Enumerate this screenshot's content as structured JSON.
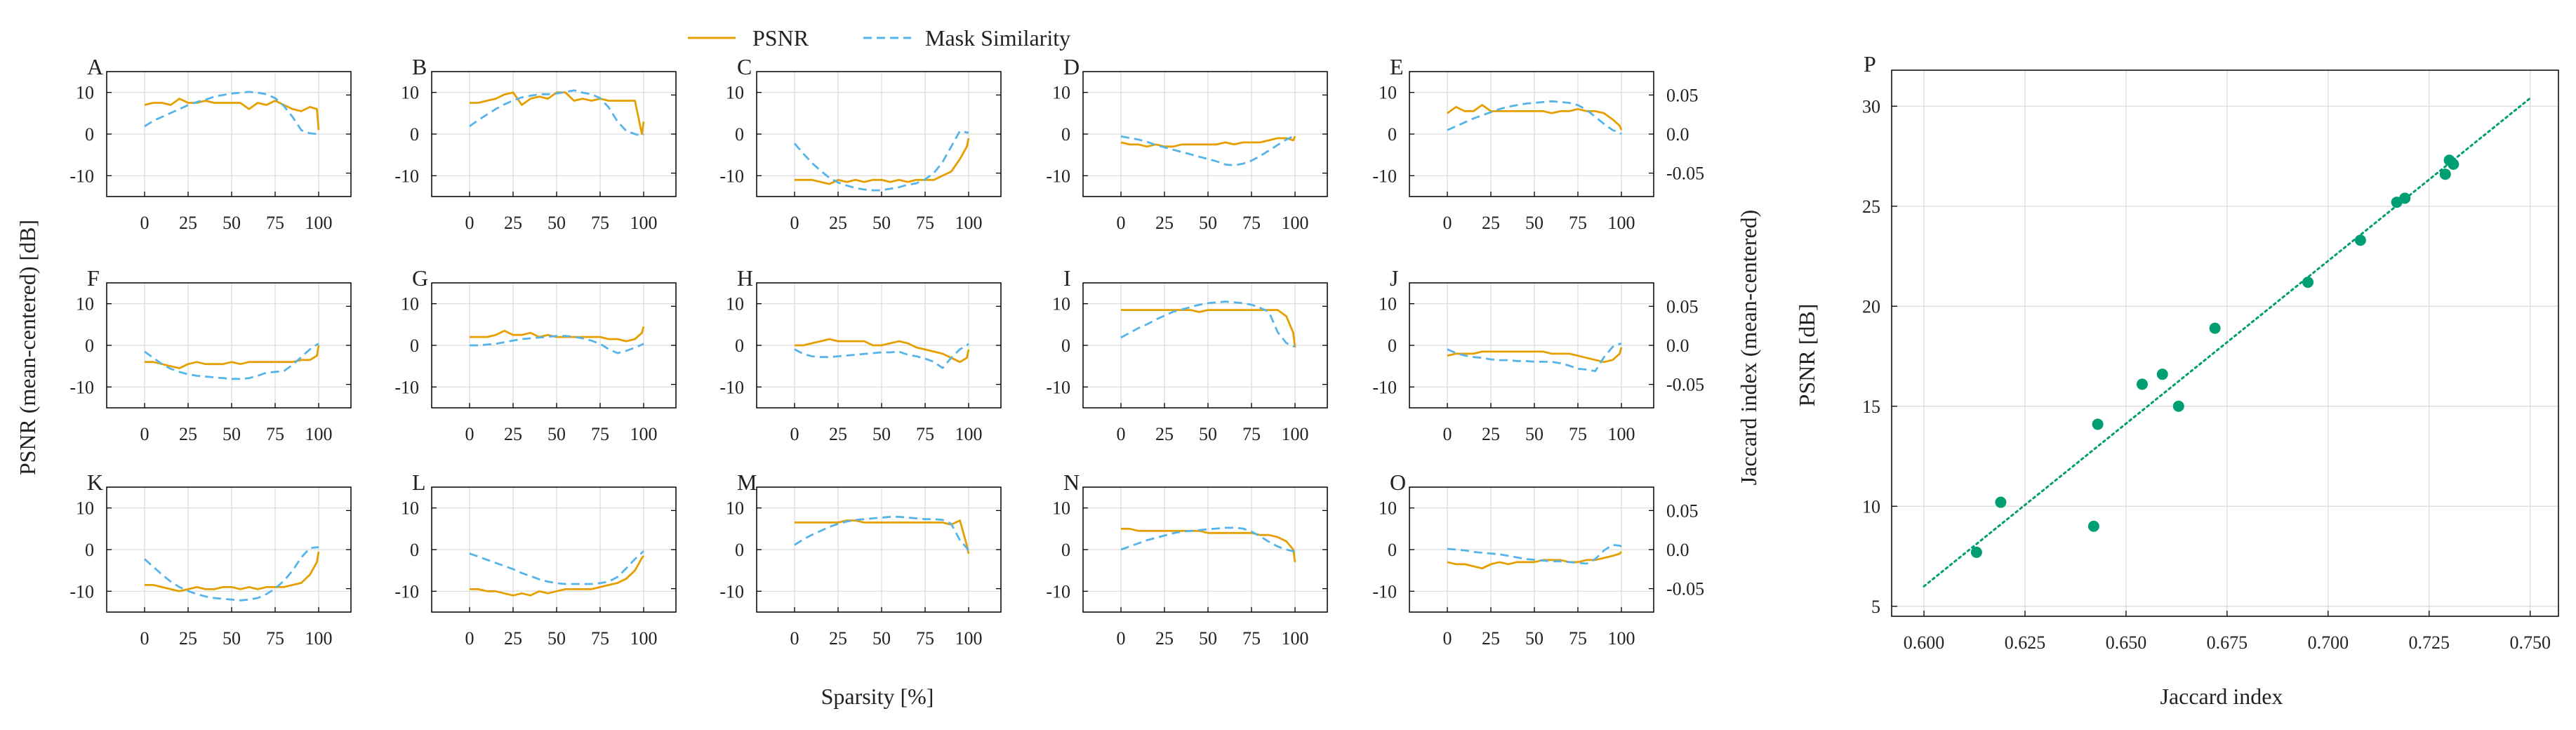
{
  "chart_data": {
    "legend": {
      "psnr": "PSNR",
      "mask": "Mask Similarity"
    },
    "colors": {
      "psnr": "#E69F00",
      "mask": "#56B4E9",
      "scatter": "#009E73",
      "grid": "#d9d9d9",
      "axis": "#000000"
    },
    "xlabel": "Sparsity [%]",
    "ylabel_left": "PSNR (mean-centered) [dB]",
    "ylabel_right": "Jaccard index (mean-centered)",
    "x_ticks": [
      0,
      25,
      50,
      75,
      100
    ],
    "y_ticks_left": [
      -10,
      0,
      10
    ],
    "y_ticks_right": [
      "-0.05",
      "0.0",
      "0.05"
    ],
    "ylim_left": [
      -15,
      15
    ],
    "ylim_right": [
      -0.08,
      0.08
    ],
    "x": [
      0,
      5,
      10,
      15,
      20,
      25,
      30,
      35,
      40,
      45,
      50,
      55,
      60,
      65,
      70,
      75,
      80,
      85,
      90,
      95,
      99,
      100
    ],
    "panels": [
      {
        "label": "A",
        "psnr": [
          7,
          7.5,
          7.5,
          7,
          8.5,
          7.5,
          7.5,
          8,
          7.5,
          7.5,
          7.5,
          7.5,
          6,
          7.5,
          7,
          8,
          7,
          6,
          5.5,
          6.5,
          6,
          1
        ],
        "mask": [
          0.01,
          0.017,
          0.022,
          0.027,
          0.032,
          0.037,
          0.041,
          0.044,
          0.048,
          0.05,
          0.052,
          0.053,
          0.054,
          0.053,
          0.051,
          0.046,
          0.036,
          0.022,
          0.005,
          0.001,
          0,
          0
        ]
      },
      {
        "label": "B",
        "psnr": [
          7.5,
          7.5,
          8,
          8.5,
          9.5,
          10,
          7,
          8.5,
          9,
          8.5,
          10,
          10,
          8,
          8.5,
          8,
          8.5,
          8,
          8,
          8,
          8,
          0,
          3
        ],
        "mask": [
          0.01,
          0.018,
          0.025,
          0.032,
          0.038,
          0.043,
          0.047,
          0.049,
          0.051,
          0.051,
          0.052,
          0.054,
          0.056,
          0.053,
          0.051,
          0.046,
          0.034,
          0.016,
          0.004,
          0,
          -0.002,
          0
        ]
      },
      {
        "label": "C",
        "psnr": [
          -11,
          -11,
          -11,
          -11.5,
          -12,
          -11,
          -11.5,
          -11,
          -11.5,
          -11,
          -11,
          -11.5,
          -11,
          -11.5,
          -11,
          -11,
          -11,
          -10,
          -9,
          -6,
          -3,
          -1
        ],
        "mask": [
          -0.012,
          -0.025,
          -0.037,
          -0.047,
          -0.056,
          -0.062,
          -0.066,
          -0.069,
          -0.071,
          -0.072,
          -0.072,
          -0.07,
          -0.068,
          -0.065,
          -0.063,
          -0.058,
          -0.05,
          -0.036,
          -0.016,
          0.004,
          0.002,
          0.002
        ]
      },
      {
        "label": "D",
        "psnr": [
          -2,
          -2.5,
          -2.5,
          -3,
          -2.5,
          -3,
          -3,
          -2.5,
          -2.5,
          -2.5,
          -2.5,
          -2.5,
          -2,
          -2.5,
          -2,
          -2,
          -2,
          -1.5,
          -1,
          -1,
          -1.5,
          -0.5
        ],
        "mask": [
          -0.003,
          -0.005,
          -0.007,
          -0.01,
          -0.014,
          -0.017,
          -0.02,
          -0.023,
          -0.026,
          -0.029,
          -0.032,
          -0.035,
          -0.039,
          -0.04,
          -0.038,
          -0.034,
          -0.028,
          -0.021,
          -0.014,
          -0.007,
          -0.003,
          -0.002
        ]
      },
      {
        "label": "E",
        "psnr": [
          5,
          6.5,
          5.5,
          5.5,
          7,
          5.5,
          5.5,
          5.5,
          5.5,
          5.5,
          5.5,
          5.5,
          5,
          5.5,
          5.5,
          6,
          5.5,
          5.5,
          5,
          3.5,
          2,
          1
        ],
        "mask": [
          0.005,
          0.01,
          0.015,
          0.02,
          0.024,
          0.028,
          0.032,
          0.035,
          0.037,
          0.039,
          0.04,
          0.041,
          0.042,
          0.041,
          0.04,
          0.037,
          0.031,
          0.022,
          0.013,
          0.005,
          0.002,
          0
        ]
      },
      {
        "label": "F",
        "psnr": [
          -4,
          -4,
          -4.5,
          -5,
          -5.5,
          -4.5,
          -4,
          -4.5,
          -4.5,
          -4.5,
          -4,
          -4.5,
          -4,
          -4,
          -4,
          -4,
          -4,
          -4,
          -3.5,
          -3.5,
          -2.5,
          0
        ],
        "mask": [
          -0.008,
          -0.016,
          -0.024,
          -0.03,
          -0.034,
          -0.037,
          -0.039,
          -0.04,
          -0.041,
          -0.042,
          -0.043,
          -0.043,
          -0.042,
          -0.039,
          -0.035,
          -0.034,
          -0.033,
          -0.025,
          -0.015,
          -0.005,
          0.001,
          0.002
        ]
      },
      {
        "label": "G",
        "psnr": [
          2,
          2,
          2,
          2.5,
          3.5,
          2.5,
          2.5,
          3,
          2,
          2.5,
          2,
          2,
          2,
          2,
          2,
          2,
          1.5,
          1.5,
          1,
          1.5,
          3,
          4.5
        ],
        "mask": [
          0,
          0,
          0.001,
          0.002,
          0.004,
          0.006,
          0.008,
          0.009,
          0.01,
          0.011,
          0.012,
          0.012,
          0.011,
          0.009,
          0.006,
          0.002,
          -0.005,
          -0.01,
          -0.007,
          -0.003,
          0.001,
          0.002
        ]
      },
      {
        "label": "H",
        "psnr": [
          0,
          0,
          0.5,
          1,
          1.5,
          1,
          1,
          1,
          1,
          0,
          0,
          0.5,
          1,
          0.5,
          -0.5,
          -1,
          -1.5,
          -2,
          -3,
          -4,
          -3,
          -1
        ],
        "mask": [
          -0.005,
          -0.011,
          -0.014,
          -0.015,
          -0.015,
          -0.014,
          -0.013,
          -0.012,
          -0.011,
          -0.01,
          -0.009,
          -0.009,
          -0.008,
          -0.012,
          -0.014,
          -0.017,
          -0.021,
          -0.029,
          -0.016,
          -0.005,
          0,
          0.002
        ]
      },
      {
        "label": "I",
        "psnr": [
          8.5,
          8.5,
          8.5,
          8.5,
          8.5,
          8.5,
          8.5,
          8.5,
          8.5,
          8,
          8.5,
          8.5,
          8.5,
          8.5,
          8.5,
          8.5,
          8.5,
          8.5,
          8.5,
          7,
          3,
          -0.5
        ],
        "mask": [
          0.01,
          0.016,
          0.022,
          0.027,
          0.033,
          0.038,
          0.043,
          0.046,
          0.049,
          0.052,
          0.054,
          0.055,
          0.056,
          0.055,
          0.054,
          0.052,
          0.048,
          0.043,
          0.017,
          0.003,
          -0.001,
          -0.001
        ]
      },
      {
        "label": "J",
        "psnr": [
          -2.5,
          -2,
          -2,
          -2,
          -1.5,
          -1.5,
          -1.5,
          -1.5,
          -1.5,
          -1.5,
          -1.5,
          -1.5,
          -2,
          -2,
          -2,
          -2.5,
          -3,
          -3.5,
          -4,
          -3.5,
          -2,
          -0.5
        ],
        "mask": [
          -0.005,
          -0.01,
          -0.013,
          -0.015,
          -0.016,
          -0.018,
          -0.019,
          -0.019,
          -0.02,
          -0.02,
          -0.021,
          -0.021,
          -0.021,
          -0.023,
          -0.026,
          -0.03,
          -0.031,
          -0.033,
          -0.015,
          -0.002,
          0.002,
          0.002
        ]
      },
      {
        "label": "K",
        "psnr": [
          -8.5,
          -8.5,
          -9,
          -9.5,
          -10,
          -9.5,
          -9,
          -9.5,
          -9.5,
          -9,
          -9,
          -9.5,
          -9,
          -9.5,
          -9,
          -9,
          -9,
          -8.5,
          -8,
          -6,
          -3,
          -0.5
        ],
        "mask": [
          -0.012,
          -0.022,
          -0.032,
          -0.041,
          -0.048,
          -0.053,
          -0.057,
          -0.06,
          -0.062,
          -0.063,
          -0.064,
          -0.065,
          -0.064,
          -0.062,
          -0.057,
          -0.05,
          -0.04,
          -0.027,
          -0.01,
          0.002,
          0.003,
          0.003
        ]
      },
      {
        "label": "L",
        "psnr": [
          -9.5,
          -9.5,
          -10,
          -10,
          -10.5,
          -11,
          -10.5,
          -11,
          -10,
          -10.5,
          -10,
          -9.5,
          -9.5,
          -9.5,
          -9.5,
          -9,
          -8.5,
          -8,
          -7,
          -5,
          -2,
          -1.5
        ],
        "mask": [
          -0.005,
          -0.009,
          -0.013,
          -0.017,
          -0.021,
          -0.025,
          -0.03,
          -0.034,
          -0.038,
          -0.041,
          -0.043,
          -0.044,
          -0.044,
          -0.044,
          -0.044,
          -0.043,
          -0.041,
          -0.035,
          -0.024,
          -0.012,
          -0.004,
          -0.002
        ]
      },
      {
        "label": "M",
        "psnr": [
          6.5,
          6.5,
          6.5,
          6.5,
          6.5,
          6.5,
          7,
          7,
          6.5,
          6.5,
          6.5,
          6.5,
          6.5,
          6.5,
          6.5,
          6.5,
          6.5,
          6.5,
          6,
          7,
          1,
          -1
        ],
        "mask": [
          0.006,
          0.013,
          0.019,
          0.024,
          0.029,
          0.033,
          0.036,
          0.038,
          0.039,
          0.04,
          0.041,
          0.042,
          0.042,
          0.041,
          0.04,
          0.039,
          0.039,
          0.038,
          0.033,
          0.012,
          0.002,
          -0.003
        ]
      },
      {
        "label": "N",
        "psnr": [
          5,
          5,
          4.5,
          4.5,
          4.5,
          4.5,
          4.5,
          4.5,
          4.5,
          4.5,
          4,
          4,
          4,
          4,
          4,
          4,
          3.5,
          3.5,
          3,
          2,
          0,
          -3
        ],
        "mask": [
          0,
          0.004,
          0.008,
          0.012,
          0.015,
          0.018,
          0.021,
          0.023,
          0.024,
          0.025,
          0.026,
          0.027,
          0.028,
          0.028,
          0.027,
          0.023,
          0.017,
          0.01,
          0.004,
          0,
          -0.002,
          -0.002
        ]
      },
      {
        "label": "O",
        "psnr": [
          -3,
          -3.5,
          -3.5,
          -4,
          -4.5,
          -3.5,
          -3,
          -3.5,
          -3,
          -3,
          -3,
          -2.5,
          -2.5,
          -2.5,
          -3,
          -3,
          -2.5,
          -2.5,
          -2,
          -1.5,
          -1,
          -0.5
        ],
        "mask": [
          0.001,
          0,
          -0.001,
          -0.003,
          -0.004,
          -0.005,
          -0.006,
          -0.008,
          -0.01,
          -0.012,
          -0.013,
          -0.014,
          -0.015,
          -0.015,
          -0.016,
          -0.017,
          -0.018,
          -0.012,
          -0.001,
          0.006,
          0.005,
          0.004
        ]
      }
    ],
    "scatter": {
      "label": "P",
      "type": "scatter",
      "xlabel": "Jaccard index",
      "ylabel": "PSNR [dB]",
      "x_ticks": [
        "0.600",
        "0.625",
        "0.650",
        "0.675",
        "0.700",
        "0.725",
        "0.750"
      ],
      "y_ticks": [
        5,
        10,
        15,
        20,
        25,
        30
      ],
      "xlim": [
        0.592,
        0.757
      ],
      "ylim": [
        4.5,
        31.8
      ],
      "points": [
        {
          "x": 0.613,
          "y": 7.7
        },
        {
          "x": 0.619,
          "y": 10.2
        },
        {
          "x": 0.642,
          "y": 9.0
        },
        {
          "x": 0.643,
          "y": 14.1
        },
        {
          "x": 0.654,
          "y": 16.1
        },
        {
          "x": 0.659,
          "y": 16.6
        },
        {
          "x": 0.663,
          "y": 15.0
        },
        {
          "x": 0.672,
          "y": 18.9
        },
        {
          "x": 0.695,
          "y": 21.2
        },
        {
          "x": 0.708,
          "y": 23.3
        },
        {
          "x": 0.717,
          "y": 25.2
        },
        {
          "x": 0.719,
          "y": 25.4
        },
        {
          "x": 0.729,
          "y": 26.6
        },
        {
          "x": 0.73,
          "y": 27.3
        },
        {
          "x": 0.731,
          "y": 27.1
        }
      ],
      "trendline": {
        "x": [
          0.6,
          0.75
        ],
        "y": [
          6.0,
          30.4
        ]
      }
    }
  }
}
